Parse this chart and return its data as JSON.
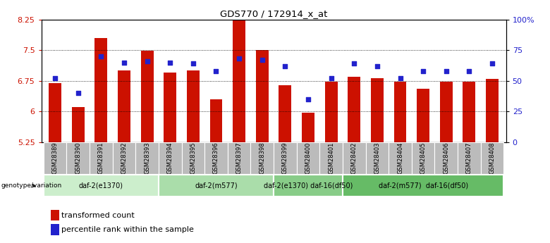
{
  "title": "GDS770 / 172914_x_at",
  "categories": [
    "GSM28389",
    "GSM28390",
    "GSM28391",
    "GSM28392",
    "GSM28393",
    "GSM28394",
    "GSM28395",
    "GSM28396",
    "GSM28397",
    "GSM28398",
    "GSM28399",
    "GSM28400",
    "GSM28401",
    "GSM28402",
    "GSM28403",
    "GSM28404",
    "GSM28405",
    "GSM28406",
    "GSM28407",
    "GSM28408"
  ],
  "bar_values": [
    6.7,
    6.1,
    7.8,
    7.0,
    7.48,
    6.95,
    7.0,
    6.3,
    8.6,
    7.5,
    6.65,
    5.97,
    6.73,
    6.85,
    6.82,
    6.72,
    6.55,
    6.72,
    6.72,
    6.8
  ],
  "percentile_pct": [
    52,
    40,
    70,
    65,
    66,
    65,
    64,
    58,
    68,
    67,
    62,
    35,
    52,
    64,
    62,
    52,
    58,
    58,
    58,
    64
  ],
  "ylim": [
    5.25,
    8.25
  ],
  "y2lim": [
    0,
    100
  ],
  "bar_color": "#cc1100",
  "dot_color": "#2222cc",
  "yticks": [
    5.25,
    6.0,
    6.75,
    7.5,
    8.25
  ],
  "ytick_labels": [
    "5.25",
    "6",
    "6.75",
    "7.5",
    "8.25"
  ],
  "y2ticks": [
    0,
    25,
    50,
    75,
    100
  ],
  "y2tick_labels": [
    "0",
    "25",
    "50",
    "75",
    "100%"
  ],
  "groups": [
    {
      "label": "daf-2(e1370)",
      "start": 0,
      "end": 4,
      "color": "#cceecc"
    },
    {
      "label": "daf-2(m577)",
      "start": 5,
      "end": 9,
      "color": "#aaddaa"
    },
    {
      "label": "daf-2(e1370) daf-16(df50)",
      "start": 10,
      "end": 12,
      "color": "#88cc88"
    },
    {
      "label": "daf-2(m577)  daf-16(df50)",
      "start": 13,
      "end": 19,
      "color": "#66bb66"
    }
  ],
  "xlabel_genotype": "genotype/variation",
  "legend_items": [
    {
      "label": "transformed count",
      "color": "#cc1100"
    },
    {
      "label": "percentile rank within the sample",
      "color": "#2222cc"
    }
  ],
  "xtick_bg": "#bbbbbb"
}
